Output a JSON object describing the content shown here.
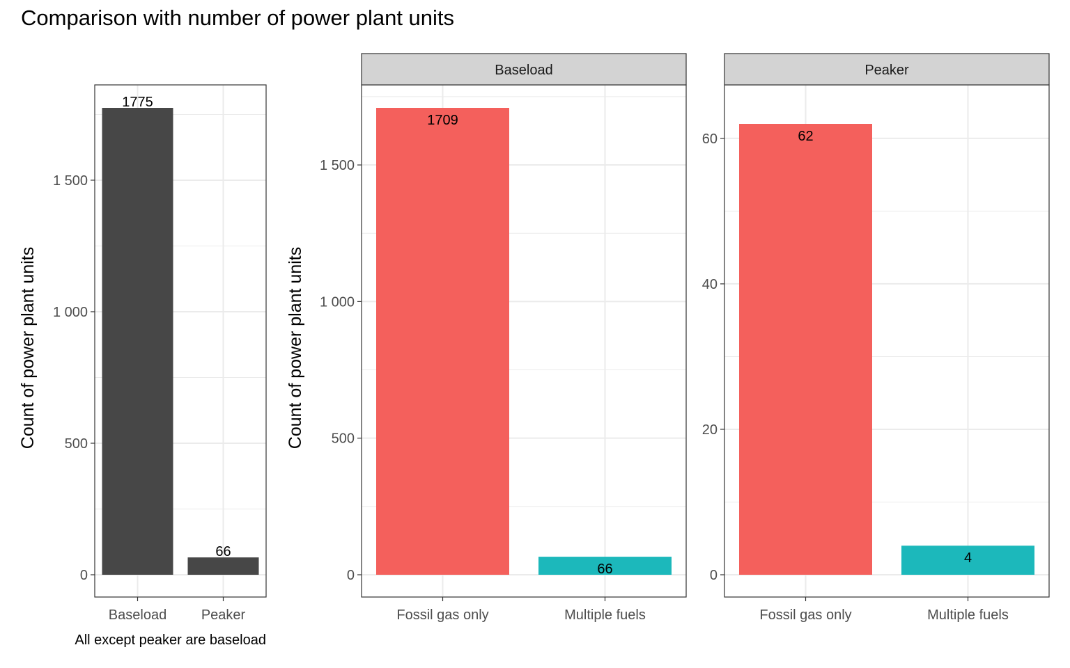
{
  "title": "Comparison with number of power plant units",
  "colors": {
    "bar_overall": "#474747",
    "fossil_gas_only": "#F4605C",
    "multiple_fuels": "#1CB8BB",
    "strip_fill": "#D3D3D3",
    "grid": "#EBEBEB",
    "axis_text": "#4D4D4D"
  },
  "chart_data": [
    {
      "type": "bar",
      "categories": [
        "Baseload",
        "Peaker"
      ],
      "values": [
        1775,
        66
      ],
      "labels": [
        "1775",
        "66"
      ],
      "ylabel": "Count of power plant units",
      "xlabel": "",
      "caption": "All except peaker are baseload",
      "ylim": [
        0,
        1775
      ],
      "yticks": [
        0,
        500,
        1000,
        1500
      ],
      "ytick_labels": [
        "0",
        "500",
        "1 000",
        "1 500"
      ]
    },
    {
      "type": "bar",
      "facet": "Baseload",
      "categories": [
        "Fossil gas only",
        "Multiple fuels"
      ],
      "values": [
        1709,
        66
      ],
      "labels": [
        "1709",
        "66"
      ],
      "ylabel": "Count of power plant units",
      "ylim": [
        0,
        1709
      ],
      "yticks": [
        0,
        500,
        1000,
        1500
      ],
      "ytick_labels": [
        "0",
        "500",
        "1 000",
        "1 500"
      ]
    },
    {
      "type": "bar",
      "facet": "Peaker",
      "categories": [
        "Fossil gas only",
        "Multiple fuels"
      ],
      "values": [
        62,
        4
      ],
      "labels": [
        "62",
        "4"
      ],
      "ylim": [
        0,
        62
      ],
      "yticks": [
        0,
        20,
        40,
        60
      ],
      "ytick_labels": [
        "0",
        "20",
        "40",
        "60"
      ]
    }
  ]
}
